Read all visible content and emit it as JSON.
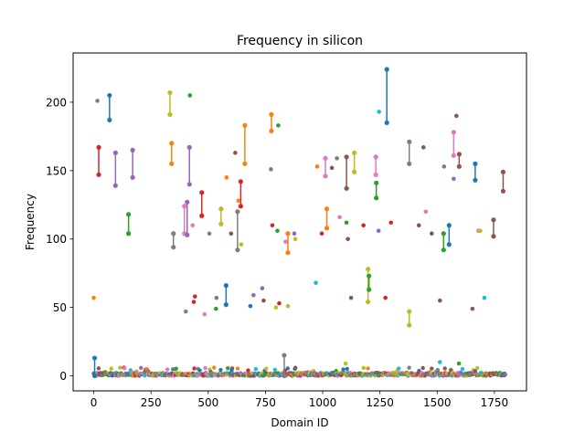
{
  "chart_data": {
    "type": "scatter",
    "title": "Frequency in silicon",
    "xlabel": "Domain ID",
    "ylabel": "Frequency",
    "xlim": [
      -90,
      1890
    ],
    "ylim": [
      -11,
      236
    ],
    "x_ticks": [
      0,
      250,
      500,
      750,
      1000,
      1250,
      1500,
      1750
    ],
    "x_tick_labels": [
      "0",
      "250",
      "500",
      "750",
      "1000",
      "1250",
      "1500",
      "1750"
    ],
    "y_ticks": [
      0,
      50,
      100,
      150,
      200
    ],
    "y_tick_labels": [
      "0",
      "50",
      "100",
      "150",
      "200"
    ],
    "grid": false,
    "legend": "none",
    "palette": [
      "#1f77b4",
      "#ff7f0e",
      "#2ca02c",
      "#d62728",
      "#9467bd",
      "#8c564b",
      "#e377c2",
      "#7f7f7f",
      "#bcbd22",
      "#17becf"
    ],
    "segments": [
      {
        "x": 4,
        "y": [
          0,
          13
        ],
        "color": "#1f77b4"
      },
      {
        "x": 22,
        "y": [
          147,
          167
        ],
        "color": "#d62728"
      },
      {
        "x": 69,
        "y": [
          187,
          205
        ],
        "color": "#1f77b4"
      },
      {
        "x": 95,
        "y": [
          139,
          163
        ],
        "color": "#9467bd"
      },
      {
        "x": 152,
        "y": [
          104,
          118
        ],
        "color": "#2ca02c"
      },
      {
        "x": 170,
        "y": [
          145,
          165
        ],
        "color": "#9467bd"
      },
      {
        "x": 333,
        "y": [
          191,
          207
        ],
        "color": "#bcbd22"
      },
      {
        "x": 340,
        "y": [
          155,
          170
        ],
        "color": "#ff7f0e"
      },
      {
        "x": 348,
        "y": [
          94,
          104
        ],
        "color": "#7f7f7f"
      },
      {
        "x": 396,
        "y": [
          104,
          124
        ],
        "color": "#e377c2"
      },
      {
        "x": 408,
        "y": [
          103,
          127
        ],
        "color": "#9467bd"
      },
      {
        "x": 418,
        "y": [
          140,
          167
        ],
        "color": "#9467bd"
      },
      {
        "x": 472,
        "y": [
          117,
          134
        ],
        "color": "#d62728"
      },
      {
        "x": 556,
        "y": [
          111,
          122
        ],
        "color": "#bcbd22"
      },
      {
        "x": 578,
        "y": [
          52,
          66
        ],
        "color": "#1f77b4"
      },
      {
        "x": 628,
        "y": [
          92,
          120
        ],
        "color": "#7f7f7f"
      },
      {
        "x": 642,
        "y": [
          124,
          142
        ],
        "color": "#d62728"
      },
      {
        "x": 660,
        "y": [
          155,
          183
        ],
        "color": "#ff7f0e"
      },
      {
        "x": 776,
        "y": [
          179,
          191
        ],
        "color": "#ff7f0e"
      },
      {
        "x": 832,
        "y": [
          0,
          15
        ],
        "color": "#7f7f7f"
      },
      {
        "x": 848,
        "y": [
          90,
          104
        ],
        "color": "#ff7f0e"
      },
      {
        "x": 1012,
        "y": [
          146,
          159
        ],
        "color": "#e377c2"
      },
      {
        "x": 1018,
        "y": [
          108,
          122
        ],
        "color": "#ff7f0e"
      },
      {
        "x": 1104,
        "y": [
          137,
          160
        ],
        "color": "#8c564b"
      },
      {
        "x": 1138,
        "y": [
          149,
          163
        ],
        "color": "#bcbd22"
      },
      {
        "x": 1198,
        "y": [
          54,
          78
        ],
        "color": "#bcbd22"
      },
      {
        "x": 1202,
        "y": [
          63,
          73
        ],
        "color": "#2ca02c"
      },
      {
        "x": 1232,
        "y": [
          147,
          160
        ],
        "color": "#e377c2"
      },
      {
        "x": 1234,
        "y": [
          130,
          141
        ],
        "color": "#2ca02c"
      },
      {
        "x": 1280,
        "y": [
          185,
          224
        ],
        "color": "#1f77b4"
      },
      {
        "x": 1378,
        "y": [
          155,
          171
        ],
        "color": "#7f7f7f"
      },
      {
        "x": 1378,
        "y": [
          37,
          47
        ],
        "color": "#bcbd22"
      },
      {
        "x": 1528,
        "y": [
          92,
          104
        ],
        "color": "#2ca02c"
      },
      {
        "x": 1552,
        "y": [
          96,
          110
        ],
        "color": "#1f77b4"
      },
      {
        "x": 1572,
        "y": [
          161,
          178
        ],
        "color": "#e377c2"
      },
      {
        "x": 1596,
        "y": [
          153,
          162
        ],
        "color": "#8c564b"
      },
      {
        "x": 1666,
        "y": [
          143,
          155
        ],
        "color": "#1f77b4"
      },
      {
        "x": 1746,
        "y": [
          102,
          114
        ],
        "color": "#8c564b"
      },
      {
        "x": 1788,
        "y": [
          135,
          149
        ],
        "color": "#8c564b"
      }
    ],
    "points": [
      {
        "x": 0,
        "y": 57,
        "color": "#ff7f0e"
      },
      {
        "x": 16,
        "y": 201,
        "color": "#7f7f7f"
      },
      {
        "x": 402,
        "y": 47,
        "color": "#7f7f7f"
      },
      {
        "x": 420,
        "y": 205,
        "color": "#2ca02c"
      },
      {
        "x": 437,
        "y": 54,
        "color": "#d62728"
      },
      {
        "x": 442,
        "y": 58,
        "color": "#d62728"
      },
      {
        "x": 432,
        "y": 110,
        "color": "#e377c2"
      },
      {
        "x": 484,
        "y": 45,
        "color": "#e377c2"
      },
      {
        "x": 505,
        "y": 104,
        "color": "#7f7f7f"
      },
      {
        "x": 534,
        "y": 49,
        "color": "#2ca02c"
      },
      {
        "x": 536,
        "y": 57,
        "color": "#7f7f7f"
      },
      {
        "x": 580,
        "y": 145,
        "color": "#ff7f0e"
      },
      {
        "x": 600,
        "y": 104,
        "color": "#8c564b"
      },
      {
        "x": 618,
        "y": 163,
        "color": "#8c564b"
      },
      {
        "x": 632,
        "y": 128,
        "color": "#ff7f0e"
      },
      {
        "x": 644,
        "y": 96,
        "color": "#bcbd22"
      },
      {
        "x": 684,
        "y": 51,
        "color": "#1f77b4"
      },
      {
        "x": 698,
        "y": 59,
        "color": "#9467bd"
      },
      {
        "x": 736,
        "y": 64,
        "color": "#9467bd"
      },
      {
        "x": 742,
        "y": 55,
        "color": "#8c564b"
      },
      {
        "x": 774,
        "y": 151,
        "color": "#7f7f7f"
      },
      {
        "x": 780,
        "y": 110,
        "color": "#d62728"
      },
      {
        "x": 796,
        "y": 50,
        "color": "#bcbd22"
      },
      {
        "x": 802,
        "y": 106,
        "color": "#2ca02c"
      },
      {
        "x": 806,
        "y": 183,
        "color": "#2ca02c"
      },
      {
        "x": 810,
        "y": 53,
        "color": "#d62728"
      },
      {
        "x": 838,
        "y": 98,
        "color": "#e377c2"
      },
      {
        "x": 848,
        "y": 51,
        "color": "#bcbd22"
      },
      {
        "x": 876,
        "y": 104,
        "color": "#9467bd"
      },
      {
        "x": 880,
        "y": 100,
        "color": "#bcbd22"
      },
      {
        "x": 970,
        "y": 68,
        "color": "#17becf"
      },
      {
        "x": 976,
        "y": 153,
        "color": "#ff7f0e"
      },
      {
        "x": 996,
        "y": 104,
        "color": "#d62728"
      },
      {
        "x": 1040,
        "y": 152,
        "color": "#8c564b"
      },
      {
        "x": 1062,
        "y": 159,
        "color": "#7f7f7f"
      },
      {
        "x": 1074,
        "y": 116,
        "color": "#e377c2"
      },
      {
        "x": 1104,
        "y": 112,
        "color": "#2ca02c"
      },
      {
        "x": 1110,
        "y": 100,
        "color": "#8c564b"
      },
      {
        "x": 1124,
        "y": 57,
        "color": "#8c564b"
      },
      {
        "x": 1178,
        "y": 110,
        "color": "#d62728"
      },
      {
        "x": 1244,
        "y": 106,
        "color": "#9467bd"
      },
      {
        "x": 1246,
        "y": 193,
        "color": "#17becf"
      },
      {
        "x": 1274,
        "y": 57,
        "color": "#d62728"
      },
      {
        "x": 1298,
        "y": 112,
        "color": "#d62728"
      },
      {
        "x": 1420,
        "y": 110,
        "color": "#8c564b"
      },
      {
        "x": 1440,
        "y": 167,
        "color": "#8c564b"
      },
      {
        "x": 1450,
        "y": 120,
        "color": "#e377c2"
      },
      {
        "x": 1476,
        "y": 104,
        "color": "#8c564b"
      },
      {
        "x": 1512,
        "y": 55,
        "color": "#8c564b"
      },
      {
        "x": 1530,
        "y": 153,
        "color": "#7f7f7f"
      },
      {
        "x": 1572,
        "y": 144,
        "color": "#9467bd"
      },
      {
        "x": 1584,
        "y": 190,
        "color": "#8c564b"
      },
      {
        "x": 1596,
        "y": 162,
        "color": "#8c564b"
      },
      {
        "x": 1654,
        "y": 49,
        "color": "#8c564b"
      },
      {
        "x": 1680,
        "y": 106,
        "color": "#e377c2"
      },
      {
        "x": 1688,
        "y": 106,
        "color": "#bcbd22"
      },
      {
        "x": 1706,
        "y": 57,
        "color": "#17becf"
      },
      {
        "x": 1100,
        "y": 9,
        "color": "#bcbd22"
      },
      {
        "x": 1512,
        "y": 10,
        "color": "#17becf"
      },
      {
        "x": 1595,
        "y": 9,
        "color": "#2ca02c"
      }
    ],
    "baseline": {
      "x_range": [
        0,
        1800
      ],
      "y_max": 6,
      "note": "dense cluster of low-frequency points near y = 0 across all domains"
    }
  }
}
